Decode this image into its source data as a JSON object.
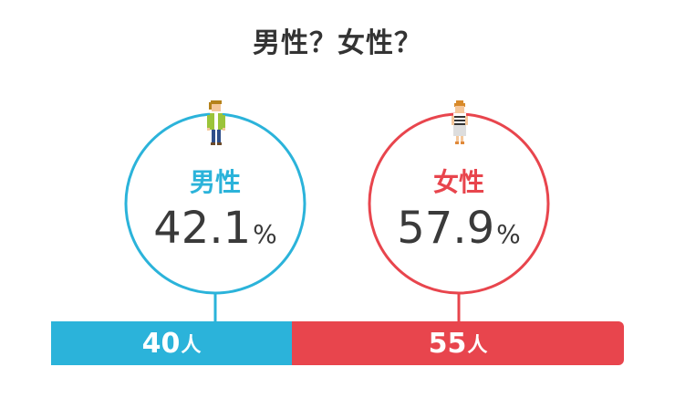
{
  "title": "男性？女性？",
  "colors": {
    "male": "#2bb3da",
    "female": "#e8454d",
    "text": "#3a3a3a"
  },
  "chart_data": {
    "type": "bar",
    "orientation": "stacked-horizontal",
    "title": "男性？女性？",
    "categories": [
      "男性",
      "女性"
    ],
    "percentages": [
      42.1,
      57.9
    ],
    "counts": [
      40,
      55
    ],
    "percent_unit": "%",
    "count_unit": "人"
  },
  "male": {
    "label": "男性",
    "percent": "42.1",
    "percent_unit": "%",
    "count": "40",
    "count_unit": "人",
    "icon": "man-pixel-icon"
  },
  "female": {
    "label": "女性",
    "percent": "57.9",
    "percent_unit": "%",
    "count": "55",
    "count_unit": "人",
    "icon": "woman-pixel-icon"
  }
}
